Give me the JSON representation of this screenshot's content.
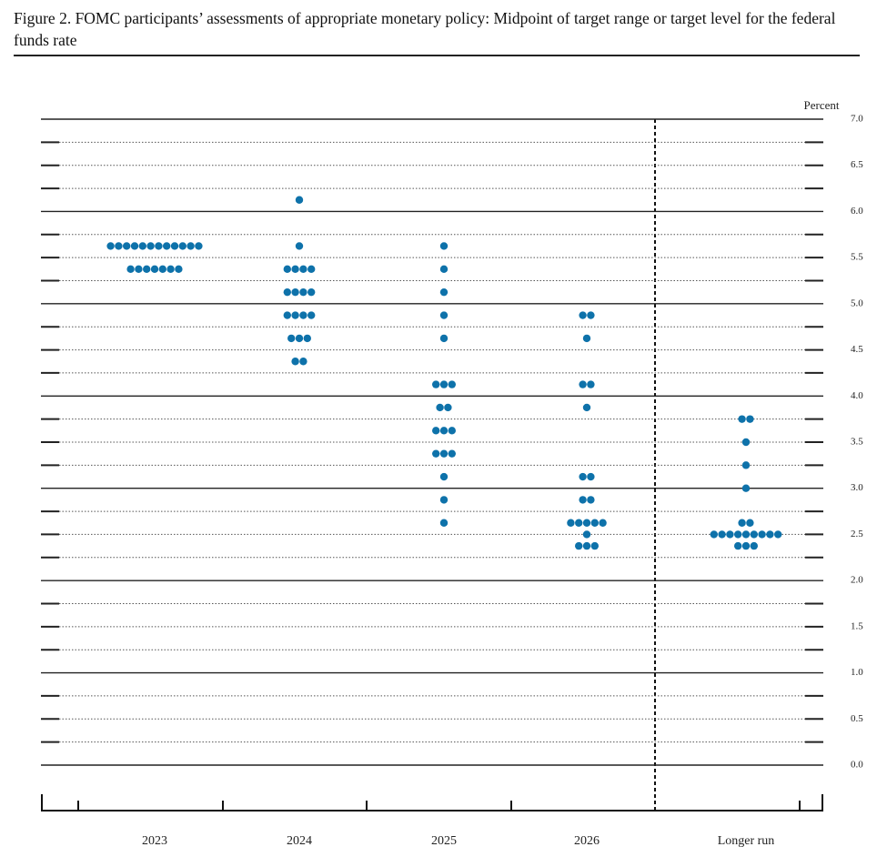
{
  "chart_data": {
    "type": "dot",
    "title": "Figure 2.  FOMC participants’ assessments of appropriate monetary policy: Midpoint of target range or target level for the federal funds rate",
    "y_label": "Percent",
    "color": "#0e72aa",
    "categories": [
      "2023",
      "2024",
      "2025",
      "2026",
      "Longer run"
    ],
    "dots": [
      [
        {
          "value": 5.625,
          "count": 12
        },
        {
          "value": 5.375,
          "count": 7
        }
      ],
      [
        {
          "value": 6.125,
          "count": 1
        },
        {
          "value": 5.625,
          "count": 1
        },
        {
          "value": 5.375,
          "count": 4
        },
        {
          "value": 5.125,
          "count": 4
        },
        {
          "value": 4.875,
          "count": 4
        },
        {
          "value": 4.625,
          "count": 3
        },
        {
          "value": 4.375,
          "count": 2
        }
      ],
      [
        {
          "value": 5.625,
          "count": 1
        },
        {
          "value": 5.375,
          "count": 1
        },
        {
          "value": 5.125,
          "count": 1
        },
        {
          "value": 4.875,
          "count": 1
        },
        {
          "value": 4.625,
          "count": 1
        },
        {
          "value": 4.125,
          "count": 3
        },
        {
          "value": 3.875,
          "count": 2
        },
        {
          "value": 3.625,
          "count": 3
        },
        {
          "value": 3.375,
          "count": 3
        },
        {
          "value": 3.125,
          "count": 1
        },
        {
          "value": 2.875,
          "count": 1
        },
        {
          "value": 2.625,
          "count": 1
        }
      ],
      [
        {
          "value": 4.875,
          "count": 2
        },
        {
          "value": 4.625,
          "count": 1
        },
        {
          "value": 4.125,
          "count": 2
        },
        {
          "value": 3.875,
          "count": 1
        },
        {
          "value": 3.125,
          "count": 2
        },
        {
          "value": 2.875,
          "count": 2
        },
        {
          "value": 2.625,
          "count": 5
        },
        {
          "value": 2.5,
          "count": 1
        },
        {
          "value": 2.375,
          "count": 3
        }
      ],
      [
        {
          "value": 3.75,
          "count": 2
        },
        {
          "value": 3.5,
          "count": 1
        },
        {
          "value": 3.25,
          "count": 1
        },
        {
          "value": 3,
          "count": 1
        },
        {
          "value": 2.625,
          "count": 2
        },
        {
          "value": 2.5,
          "count": 9
        },
        {
          "value": 2.375,
          "count": 3
        }
      ]
    ],
    "ylim": [
      0,
      7
    ],
    "yticks": [
      {
        "value": 0,
        "label": "0.0"
      },
      0.5,
      {
        "value": 1,
        "label": "1.0"
      },
      1.5,
      {
        "value": 2,
        "label": "2.0"
      },
      2.5,
      {
        "value": 3,
        "label": "3.0"
      },
      3.5,
      {
        "value": 4,
        "label": "4.0"
      },
      4.5,
      {
        "value": 5,
        "label": "5.0"
      },
      5.5,
      {
        "value": 6,
        "label": "6.0"
      },
      6.5,
      {
        "value": 7,
        "label": "7.0"
      }
    ],
    "minor_yticks": [
      0.25,
      0.75,
      1.25,
      1.75,
      2.25,
      2.75,
      3.25,
      3.75,
      4.25,
      4.75,
      5.25,
      5.75,
      6.25,
      6.75
    ],
    "grid": true
  }
}
